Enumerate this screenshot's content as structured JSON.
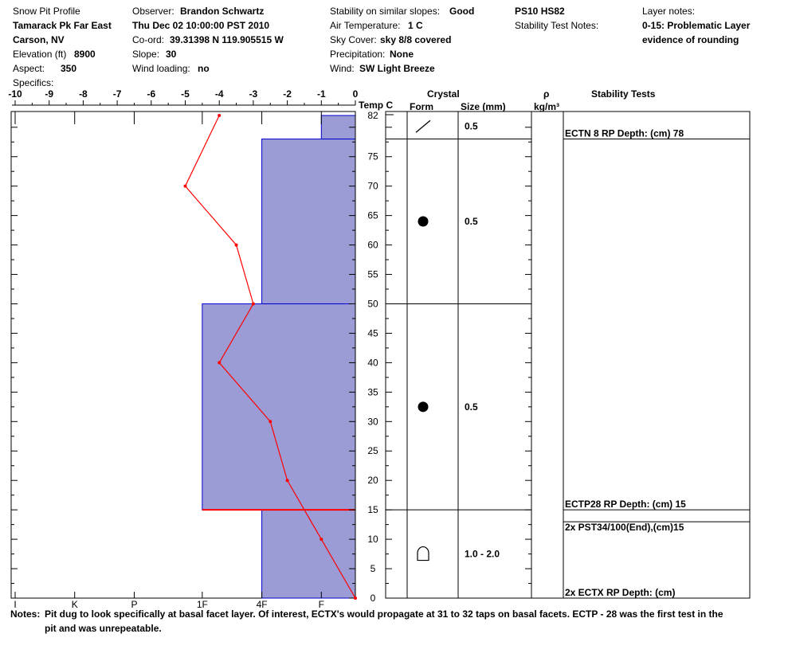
{
  "header": {
    "col1": [
      "Snow Pit Profile",
      "Tamarack Pk Far East",
      "Carson, NV"
    ],
    "elevation_label": "Elevation (ft)",
    "elevation_value": "8900",
    "aspect_label": "Aspect:",
    "aspect_value": "350",
    "specifics_label": "Specifics:",
    "observer_label": "Observer:",
    "observer_value": "Brandon Schwartz",
    "date": "Thu Dec 02 10:00:00 PST 2010",
    "coord_label": "Co-ord:",
    "coord_value": "39.31398 N 119.905515 W",
    "slope_label": "Slope:",
    "slope_value": "30",
    "wind_loading_label": "Wind loading:",
    "wind_loading_value": "no",
    "stability_label": "Stability on similar slopes:",
    "stability_value": "Good",
    "air_temp_label": "Air Temperature:",
    "air_temp_value": "1 C",
    "sky_label": "Sky Cover:",
    "sky_value": "sky 8/8 covered",
    "precip_label": "Precipitation:",
    "precip_value": "None",
    "wind_label": "Wind:",
    "wind_value": "SW Light Breeze",
    "ps_hs": "PS10 HS82",
    "stability_notes_label": "Stability Test Notes:",
    "layer_notes_label": "Layer notes:",
    "layer_notes": [
      "0-15: Problematic Layer",
      "evidence of rounding"
    ]
  },
  "columns": {
    "temp": "Temp C",
    "crystal": "Crystal",
    "form": "Form",
    "size": "Size (mm)",
    "rho": "ρ",
    "rho_unit": "kg/m³",
    "stability_tests": "Stability Tests"
  },
  "notes": {
    "label": "Notes:",
    "line1": "Pit dug to look specifically at basal facet layer. Of interest, ECTX's would propagate at 31 to 32 taps on basal facets. ECTP - 28 was the first test in the",
    "line2": "pit and was unrepeatable."
  },
  "chart_data": {
    "type": "snow-profile",
    "temp_axis": {
      "min": -10,
      "max": 0,
      "ticks": [
        "-10",
        "-9",
        "-8",
        "-7",
        "-6",
        "-5",
        "-4",
        "-3",
        "-2",
        "-1",
        "0"
      ]
    },
    "depth_axis": {
      "min": 0,
      "max": 82,
      "ticks": [
        "0",
        "5",
        "10",
        "15",
        "20",
        "25",
        "30",
        "35",
        "40",
        "45",
        "50",
        "55",
        "60",
        "65",
        "70",
        "75",
        "82"
      ]
    },
    "hardness_ticks": [
      "I",
      "K",
      "P",
      "1F",
      "4F",
      "F"
    ],
    "hardness_scale": [
      -10,
      -8.25,
      -6.5,
      -4.5,
      -2.75,
      -1
    ],
    "temperature_profile": [
      {
        "depth": 82,
        "temp": -4
      },
      {
        "depth": 70,
        "temp": -5
      },
      {
        "depth": 60,
        "temp": -3.5
      },
      {
        "depth": 50,
        "temp": -3
      },
      {
        "depth": 40,
        "temp": -4
      },
      {
        "depth": 30,
        "temp": -2.5
      },
      {
        "depth": 20,
        "temp": -2
      },
      {
        "depth": 10,
        "temp": -1
      },
      {
        "depth": 0,
        "temp": 0
      }
    ],
    "layers": [
      {
        "top": 82,
        "bottom": 78,
        "hardness": "F"
      },
      {
        "top": 78,
        "bottom": 50,
        "hardness": "4F"
      },
      {
        "top": 50,
        "bottom": 15,
        "hardness": "1F"
      },
      {
        "top": 15,
        "bottom": 0,
        "hardness": "4F"
      }
    ],
    "problem_layer_depth": 15,
    "crystals": [
      {
        "top": 82,
        "bottom": 78,
        "form": "decomposing",
        "size": "0.5"
      },
      {
        "top": 78,
        "bottom": 50,
        "form": "rounded",
        "size": "0.5"
      },
      {
        "top": 50,
        "bottom": 15,
        "form": "rounded",
        "size": "0.5"
      },
      {
        "top": 15,
        "bottom": 0,
        "form": "depth-hoar",
        "size": "1.0 - 2.0"
      }
    ],
    "stability_tests": [
      {
        "depth": 78,
        "label": "ECTN 8 RP Depth: (cm) 78"
      },
      {
        "depth": 15,
        "label": "ECTP28 RP Depth: (cm) 15"
      },
      {
        "depth": 15,
        "label": "2x PST34/100(End),(cm)15"
      },
      {
        "depth": 0,
        "label": "2x ECTX RP Depth: (cm)"
      }
    ],
    "colors": {
      "layer_fill": "#9b9cd6",
      "layer_edge": "#0000cc",
      "temp_line": "#ff0000",
      "problem_line": "#ff0000"
    }
  }
}
